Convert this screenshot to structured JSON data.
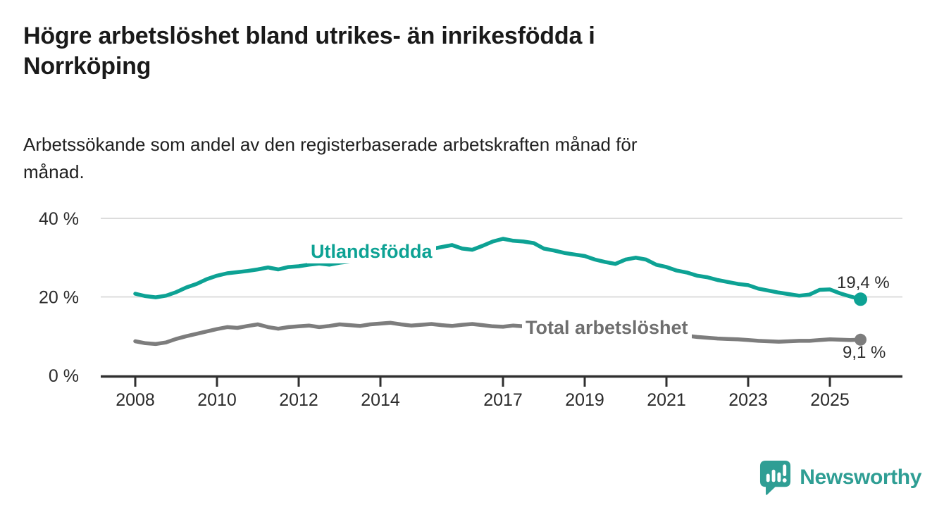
{
  "header": {
    "title_lines": [
      "Högre arbetslöshet bland utrikes- än inrikesfödda i",
      "Norrköping"
    ],
    "subtitle_lines": [
      "Arbetssökande som andel av den registerbaserade arbetskraften månad för",
      "månad."
    ]
  },
  "chart_data": {
    "type": "line",
    "title": "Högre arbetslöshet bland utrikes- än inrikesfödda i Norrköping",
    "subtitle": "Arbetssökande som andel av den registerbaserade arbetskraften månad för månad.",
    "unit": "%",
    "grid": "horizontal-only",
    "legend_position": "inline-labels-on-lines",
    "x_axis": {
      "ticks": [
        2008,
        2010,
        2012,
        2014,
        2017,
        2019,
        2021,
        2023,
        2025
      ],
      "range": [
        2007.15,
        2026.75
      ]
    },
    "y_axis": {
      "ticks": [
        {
          "value": 0,
          "label": "0 %"
        },
        {
          "value": 20,
          "label": "20 %"
        },
        {
          "value": 40,
          "label": "40 %"
        }
      ],
      "gridlines": [
        20,
        40
      ],
      "range": [
        0,
        42
      ]
    },
    "x": [
      2008,
      2008.25,
      2008.5,
      2008.75,
      2009,
      2009.25,
      2009.5,
      2009.75,
      2010,
      2010.25,
      2010.5,
      2010.75,
      2011,
      2011.25,
      2011.5,
      2011.75,
      2012,
      2012.25,
      2012.5,
      2012.75,
      2013,
      2013.25,
      2013.5,
      2013.75,
      2014,
      2014.25,
      2014.5,
      2014.75,
      2015,
      2015.25,
      2015.5,
      2015.75,
      2016,
      2016.25,
      2016.5,
      2016.75,
      2017,
      2017.25,
      2017.5,
      2017.75,
      2018,
      2018.25,
      2018.5,
      2018.75,
      2019,
      2019.25,
      2019.5,
      2019.75,
      2020,
      2020.25,
      2020.5,
      2020.75,
      2021,
      2021.25,
      2021.5,
      2021.75,
      2022,
      2022.25,
      2022.5,
      2022.75,
      2023,
      2023.25,
      2023.5,
      2023.75,
      2024,
      2024.25,
      2024.5,
      2024.75,
      2025,
      2025.25,
      2025.5,
      2025.75
    ],
    "series": [
      {
        "name": "Utlandsfödda",
        "color": "#0da294",
        "end_value": 19.4,
        "end_label": "19,4 %",
        "values": [
          20.8,
          20.2,
          19.9,
          20.3,
          21.2,
          22.4,
          23.3,
          24.5,
          25.4,
          26.0,
          26.3,
          26.6,
          27.0,
          27.5,
          27.0,
          27.6,
          27.8,
          28.2,
          28.5,
          28.2,
          28.7,
          29.0,
          29.3,
          29.7,
          30.1,
          30.5,
          30.9,
          31.3,
          31.7,
          32.2,
          32.7,
          33.2,
          32.3,
          32.0,
          33.0,
          34.1,
          34.8,
          34.3,
          34.1,
          33.7,
          32.3,
          31.8,
          31.2,
          30.8,
          30.4,
          29.5,
          28.9,
          28.4,
          29.5,
          30.0,
          29.5,
          28.2,
          27.6,
          26.7,
          26.2,
          25.4,
          25.0,
          24.3,
          23.8,
          23.3,
          23.0,
          22.1,
          21.6,
          21.1,
          20.7,
          20.3,
          20.6,
          21.8,
          21.9,
          20.9,
          20.1,
          19.4
        ]
      },
      {
        "name": "Total arbetslöshet",
        "color": "#7d7d7d",
        "end_value": 9.1,
        "end_label": "9,1 %",
        "values": [
          8.7,
          8.2,
          8.0,
          8.4,
          9.3,
          10.0,
          10.6,
          11.2,
          11.8,
          12.3,
          12.1,
          12.6,
          13.0,
          12.3,
          11.9,
          12.3,
          12.5,
          12.7,
          12.3,
          12.6,
          13.0,
          12.8,
          12.6,
          13.0,
          13.2,
          13.4,
          13.0,
          12.7,
          12.9,
          13.1,
          12.8,
          12.6,
          12.9,
          13.1,
          12.8,
          12.5,
          12.4,
          12.7,
          12.5,
          12.2,
          11.9,
          11.7,
          11.5,
          11.3,
          11.2,
          11.0,
          10.9,
          10.9,
          11.0,
          11.6,
          11.5,
          11.2,
          10.9,
          10.5,
          10.1,
          9.8,
          9.6,
          9.4,
          9.3,
          9.2,
          9.0,
          8.8,
          8.7,
          8.6,
          8.7,
          8.8,
          8.8,
          9.0,
          9.2,
          9.1,
          9.0,
          9.1
        ]
      }
    ]
  },
  "branding": {
    "logo_text": "Newsworthy",
    "logo_icon": "bar-chart-speech-bubble-icon"
  },
  "colors": {
    "accent_teal": "#0da294",
    "series_gray": "#7d7d7d",
    "brand_teal": "#2f9e94",
    "grid": "#dcdcdc",
    "axis": "#2f2f2f",
    "tick_label": "#2b2b2b",
    "text_dark": "#1a1a1a",
    "text_body": "#202020"
  }
}
